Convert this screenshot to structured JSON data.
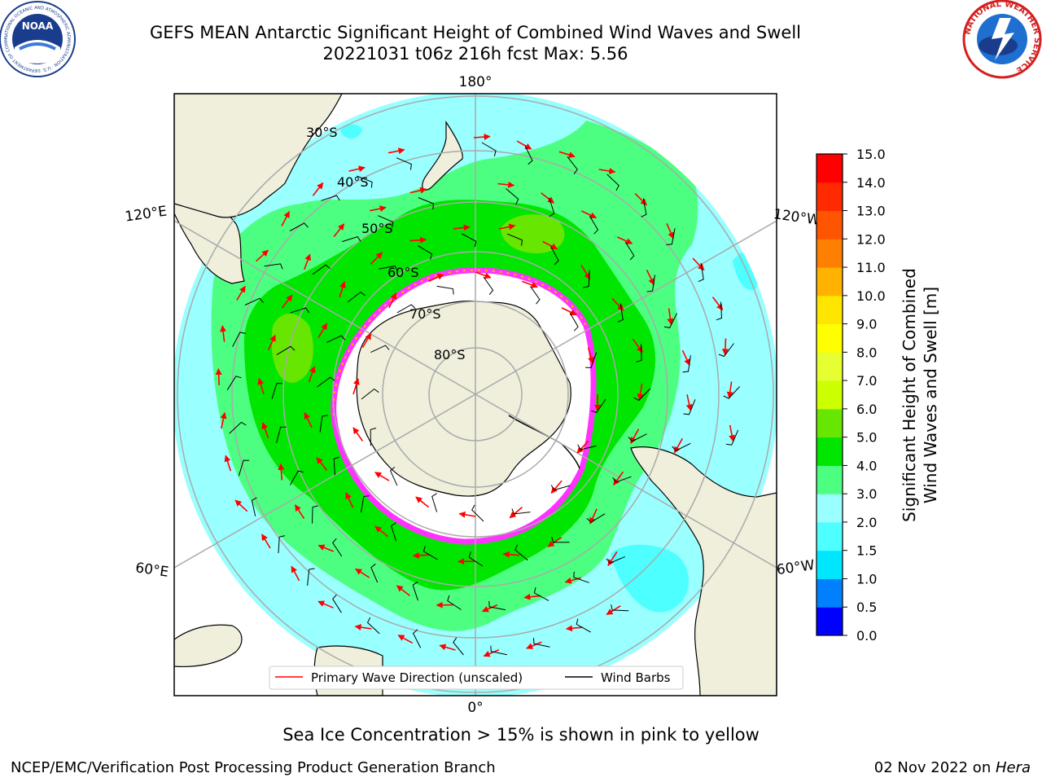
{
  "header": {
    "title_line1": "GEFS MEAN Antarctic Significant Height of Combined Wind Waves and Swell",
    "title_line2": "20221031 t06z 216h fcst   Max: 5.56"
  },
  "logos": {
    "noaa": {
      "text": "NOAA",
      "ring_text": "NATIONAL OCEANIC AND ATMOSPHERIC ADMINISTRATION · U.S. DEPARTMENT OF COMMERCE"
    },
    "nws": {
      "ring_text": "NATIONAL WEATHER SERVICE"
    }
  },
  "map": {
    "longitude_labels": {
      "top": "180°",
      "bottom": "0°",
      "left_upper": "120°E",
      "right_upper": "120°W",
      "left_lower": "60°E",
      "right_lower": "60°W"
    },
    "latitude_labels": [
      "30°S",
      "40°S",
      "50°S",
      "60°S",
      "70°S",
      "80°S"
    ],
    "legend": {
      "wave_direction": "Primary Wave Direction (unscaled)",
      "wind_barbs": "Wind Barbs",
      "wave_color": "#ff0000",
      "barb_color": "#000000"
    },
    "colors": {
      "land": "#efefdc",
      "ocean_low": "#99ffff",
      "ocean_mid": "#4dff80",
      "ocean_high": "#00e600",
      "ice": "#ffffff",
      "ice_edge": "#ff33ff"
    }
  },
  "colorbar": {
    "label_line1": "Significant Height of Combined",
    "label_line2": "Wind Waves and Swell [m]",
    "ticks": [
      "0.0",
      "0.5",
      "1.0",
      "1.5",
      "2.0",
      "3.0",
      "4.0",
      "5.0",
      "6.0",
      "7.0",
      "8.0",
      "9.0",
      "10.0",
      "11.0",
      "12.0",
      "13.0",
      "14.0",
      "15.0"
    ],
    "colors": [
      "#0000ff",
      "#0080ff",
      "#00e6ff",
      "#4dffff",
      "#99ffff",
      "#4dff80",
      "#00e600",
      "#66e600",
      "#ccff00",
      "#e6ff33",
      "#ffff00",
      "#ffe600",
      "#ffb300",
      "#ff8000",
      "#ff5500",
      "#ff2a00",
      "#ff0000"
    ]
  },
  "footer": {
    "ice_note": "Sea Ice Concentration > 15% is shown in pink to yellow",
    "left": "NCEP/EMC/Verification Post Processing Product Generation Branch",
    "right_date": "02 Nov 2022 on ",
    "right_machine": "Hera"
  }
}
